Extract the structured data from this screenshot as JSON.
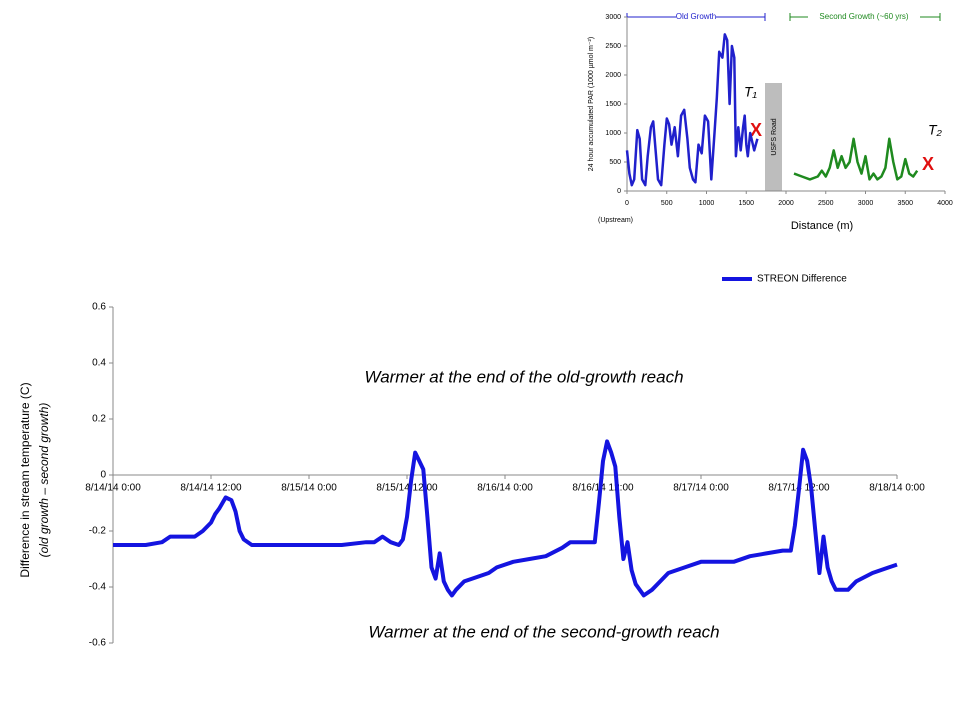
{
  "chart_data": [
    {
      "type": "line",
      "x": [
        0,
        2,
        4,
        6,
        7,
        10,
        11,
        12,
        12.5,
        13,
        13.8,
        14.5,
        15,
        15.5,
        16,
        17,
        20,
        24,
        28,
        31,
        32,
        33,
        34,
        35,
        35.5,
        36,
        36.5,
        37,
        37.5,
        38,
        38.5,
        39,
        39.5,
        40,
        40.5,
        41,
        41.5,
        42,
        43,
        44,
        46,
        47,
        49,
        51,
        53,
        55,
        56,
        59,
        59.5,
        60,
        60.5,
        61,
        61.5,
        62,
        62.5,
        63,
        63.5,
        64,
        65,
        66,
        67,
        68,
        70,
        72,
        76,
        78,
        80,
        82,
        83,
        83.5,
        84,
        84.5,
        85,
        85.5,
        86,
        86.5,
        87,
        87.5,
        88,
        88.5,
        90,
        91,
        93,
        95,
        96
      ],
      "series": [
        {
          "name": "STREON Difference",
          "color": "#1414e0",
          "values": [
            -0.25,
            -0.25,
            -0.25,
            -0.24,
            -0.22,
            -0.22,
            -0.2,
            -0.17,
            -0.14,
            -0.12,
            -0.08,
            -0.09,
            -0.13,
            -0.2,
            -0.23,
            -0.25,
            -0.25,
            -0.25,
            -0.25,
            -0.24,
            -0.24,
            -0.22,
            -0.24,
            -0.25,
            -0.23,
            -0.15,
            -0.02,
            0.08,
            0.05,
            0.02,
            -0.15,
            -0.33,
            -0.37,
            -0.28,
            -0.38,
            -0.41,
            -0.43,
            -0.41,
            -0.38,
            -0.37,
            -0.35,
            -0.33,
            -0.31,
            -0.3,
            -0.29,
            -0.26,
            -0.24,
            -0.24,
            -0.1,
            0.05,
            0.12,
            0.08,
            0.03,
            -0.15,
            -0.3,
            -0.24,
            -0.34,
            -0.39,
            -0.43,
            -0.41,
            -0.38,
            -0.35,
            -0.33,
            -0.31,
            -0.31,
            -0.29,
            -0.28,
            -0.27,
            -0.27,
            -0.18,
            -0.05,
            0.09,
            0.05,
            -0.05,
            -0.2,
            -0.35,
            -0.22,
            -0.33,
            -0.38,
            -0.41,
            -0.41,
            -0.38,
            -0.35,
            -0.33,
            -0.32
          ]
        }
      ],
      "xlim": [
        0,
        96
      ],
      "xticks": [
        {
          "value": 0,
          "label": "8/14/14 0:00"
        },
        {
          "value": 12,
          "label": "8/14/14 12:00"
        },
        {
          "value": 24,
          "label": "8/15/14 0:00"
        },
        {
          "value": 36,
          "label": "8/15/14 12:00"
        },
        {
          "value": 48,
          "label": "8/16/14 0:00"
        },
        {
          "value": 60,
          "label": "8/16/14 12:00"
        },
        {
          "value": 72,
          "label": "8/17/14 0:00"
        },
        {
          "value": 84,
          "label": "8/17/14 12:00"
        },
        {
          "value": 96,
          "label": "8/18/14 0:00"
        }
      ],
      "ylim": [
        -0.6,
        0.6
      ],
      "yticks": [
        -0.6,
        -0.4,
        -0.2,
        0,
        0.2,
        0.4,
        0.6
      ],
      "ylabel": [
        "Difference in stream temperature (C)",
        "(old growth – second growth)"
      ],
      "annotations": [
        "Warmer at the end of the old-growth reach",
        "Warmer at the end of the second-growth reach"
      ],
      "legend": "top-right"
    },
    {
      "type": "line",
      "series": [
        {
          "name": "Old Growth",
          "color": "#2020cc",
          "x": [
            0,
            30,
            60,
            90,
            130,
            160,
            190,
            230,
            260,
            300,
            330,
            360,
            390,
            430,
            470,
            500,
            530,
            560,
            600,
            640,
            680,
            720,
            760,
            790,
            830,
            860,
            900,
            940,
            980,
            1020,
            1060,
            1100,
            1130,
            1160,
            1200,
            1230,
            1260,
            1290,
            1320,
            1350,
            1370,
            1400,
            1430,
            1460,
            1480,
            1500,
            1520,
            1550,
            1600,
            1640
          ],
          "values": [
            700,
            300,
            100,
            200,
            1050,
            900,
            200,
            100,
            600,
            1100,
            1200,
            700,
            200,
            100,
            800,
            1250,
            1150,
            800,
            1100,
            600,
            1300,
            1400,
            900,
            400,
            200,
            150,
            800,
            650,
            1300,
            1200,
            200,
            1000,
            1600,
            2400,
            2300,
            2700,
            2600,
            1500,
            2500,
            2300,
            600,
            1100,
            700,
            1100,
            1300,
            800,
            600,
            1000,
            700,
            900
          ]
        },
        {
          "name": "Second Growth (~60 yrs)",
          "color": "#1f8a1f",
          "x": [
            2100,
            2200,
            2300,
            2400,
            2450,
            2500,
            2550,
            2600,
            2650,
            2700,
            2750,
            2800,
            2850,
            2900,
            2950,
            3000,
            3050,
            3100,
            3150,
            3200,
            3250,
            3300,
            3350,
            3400,
            3450,
            3500,
            3550,
            3600,
            3650
          ],
          "values": [
            300,
            250,
            200,
            250,
            350,
            250,
            400,
            700,
            400,
            600,
            400,
            500,
            900,
            500,
            300,
            600,
            200,
            300,
            200,
            250,
            400,
            900,
            500,
            200,
            250,
            550,
            300,
            250,
            350
          ]
        }
      ],
      "xlim": [
        0,
        4000
      ],
      "xticks": [
        0,
        500,
        1000,
        1500,
        2000,
        2500,
        3000,
        3500,
        4000
      ],
      "ylim": [
        0,
        3000
      ],
      "yticks": [
        0,
        500,
        1000,
        1500,
        2000,
        2500,
        3000
      ],
      "xlabel": "Distance (m)",
      "ylabel": "24 hour accumulated PAR (1000 µmol m⁻²)",
      "xnote": "(Upstream)",
      "road": "USFS Road",
      "markers": [
        "T₁",
        "X",
        "T₂",
        "X"
      ]
    }
  ]
}
